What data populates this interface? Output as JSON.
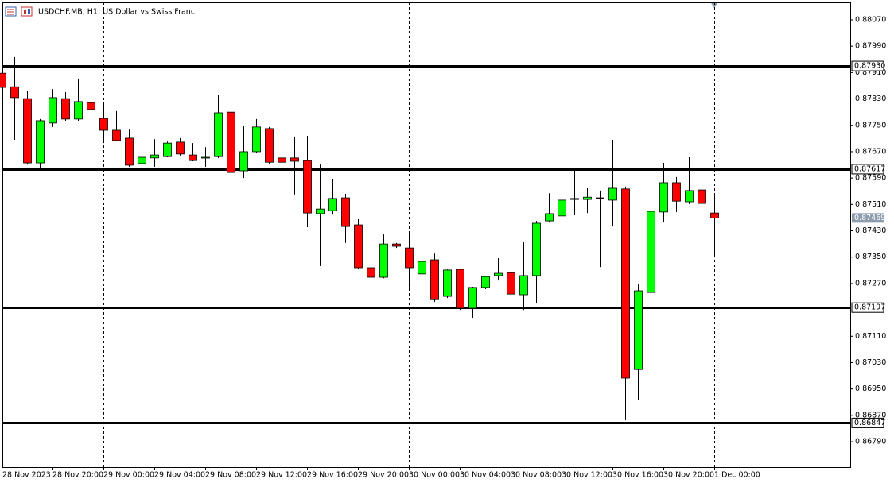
{
  "chart_data": {
    "type": "candlestick",
    "title": "USDCHF.MB, H1:  US Dollar vs Swiss Franc",
    "categories": [
      "28 Nov 2023",
      null,
      null,
      null,
      "28 Nov 20:00",
      null,
      null,
      null,
      "29 Nov 00:00",
      null,
      null,
      null,
      "29 Nov 04:00",
      null,
      null,
      null,
      "29 Nov 08:00",
      null,
      null,
      null,
      "29 Nov 12:00",
      null,
      null,
      null,
      "29 Nov 16:00",
      null,
      null,
      null,
      "29 Nov 20:00",
      null,
      null,
      null,
      "30 Nov 00:00",
      null,
      null,
      null,
      "30 Nov 04:00",
      null,
      null,
      null,
      "30 Nov 08:00",
      null,
      null,
      null,
      "30 Nov 12:00",
      null,
      null,
      null,
      "30 Nov 16:00",
      null,
      null,
      null,
      "30 Nov 20:00",
      null,
      null,
      null,
      "1 Dec 00:00"
    ],
    "open": [
      0.87908,
      0.87867,
      0.87831,
      0.87636,
      0.87757,
      0.87831,
      0.87769,
      0.87819,
      0.87771,
      0.87735,
      0.87711,
      0.87634,
      0.87651,
      0.87655,
      0.87699,
      0.8766,
      0.87651,
      0.87655,
      0.8779,
      0.87612,
      0.8767,
      0.8774,
      0.87651,
      0.87651,
      0.87643,
      0.87482,
      0.87491,
      0.8753,
      0.87448,
      0.87318,
      0.87289,
      0.8739,
      0.87378,
      0.87299,
      0.87342,
      0.87231,
      0.87313,
      0.87195,
      0.87258,
      0.87294,
      0.87303,
      0.87236,
      0.87294,
      0.8746,
      0.87475,
      0.87528,
      0.87525,
      0.8753,
      0.87523,
      0.87557,
      0.87009,
      0.87243,
      0.87487,
      0.87576,
      0.87518,
      0.87554,
      0.87484
    ],
    "high": [
      0.87913,
      0.87957,
      0.87853,
      0.87769,
      0.8786,
      0.87851,
      0.87892,
      0.87843,
      0.87817,
      0.87793,
      0.87737,
      0.87665,
      0.87708,
      0.87701,
      0.87711,
      0.87696,
      0.87684,
      0.87841,
      0.87805,
      0.87749,
      0.87769,
      0.87745,
      0.87675,
      0.87716,
      0.87718,
      0.87631,
      0.87588,
      0.87542,
      0.87465,
      0.87352,
      0.87419,
      0.87393,
      0.87426,
      0.87366,
      0.87361,
      0.87313,
      0.87315,
      0.8726,
      0.87294,
      0.87347,
      0.87308,
      0.87397,
      0.8746,
      0.87544,
      0.87588,
      0.87612,
      0.87559,
      0.87552,
      0.87706,
      0.87564,
      0.87267,
      0.87496,
      0.87636,
      0.87593,
      0.87653,
      0.87559,
      0.8754
    ],
    "low": [
      0.87865,
      0.87706,
      0.87631,
      0.87617,
      0.87745,
      0.87764,
      0.87764,
      0.87793,
      0.87696,
      0.87701,
      0.87624,
      0.87569,
      0.87624,
      0.87653,
      0.87658,
      0.87641,
      0.87624,
      0.87651,
      0.87595,
      0.8759,
      0.87665,
      0.87634,
      0.87595,
      0.8754,
      0.87441,
      0.87323,
      0.87479,
      0.87393,
      0.87313,
      0.87205,
      0.87286,
      0.87378,
      0.87258,
      0.87296,
      0.87214,
      0.87226,
      0.8719,
      0.87166,
      0.87253,
      0.87279,
      0.87212,
      0.8719,
      0.87212,
      0.87455,
      0.87465,
      0.87477,
      0.87484,
      0.8732,
      0.87443,
      0.86855,
      0.86918,
      0.87236,
      0.87455,
      0.87487,
      0.87511,
      0.87511,
      0.87349
    ],
    "close": [
      0.87865,
      0.87834,
      0.87636,
      0.87764,
      0.87834,
      0.87769,
      0.87822,
      0.87798,
      0.87735,
      0.87704,
      0.87629,
      0.87653,
      0.8766,
      0.87696,
      0.87663,
      0.87643,
      0.87653,
      0.87788,
      0.87607,
      0.8767,
      0.87745,
      0.87638,
      0.87638,
      0.87641,
      0.87484,
      0.87496,
      0.87528,
      0.87443,
      0.87318,
      0.87289,
      0.8739,
      0.87383,
      0.87318,
      0.87337,
      0.87221,
      0.87311,
      0.87195,
      0.87258,
      0.87291,
      0.87301,
      0.87238,
      0.87294,
      0.87453,
      0.87482,
      0.87523,
      0.87525,
      0.87532,
      0.87528,
      0.87559,
      0.86983,
      0.87248,
      0.87489,
      0.87576,
      0.8752,
      0.87552,
      0.87513,
      0.87469
    ],
    "up_color": "#00ff00",
    "down_color": "#ff0000",
    "ylim": [
      0.86713,
      0.88123
    ],
    "yticks": [
      {
        "value": 0.8807,
        "label": "0.88070"
      },
      {
        "value": 0.8799,
        "label": "0.87990"
      },
      {
        "value": 0.8791,
        "label": "0.87910"
      },
      {
        "value": 0.8783,
        "label": "0.87830"
      },
      {
        "value": 0.8775,
        "label": "0.87750"
      },
      {
        "value": 0.8767,
        "label": "0.87670"
      },
      {
        "value": 0.8759,
        "label": "0.87590"
      },
      {
        "value": 0.8751,
        "label": "0.87510"
      },
      {
        "value": 0.8743,
        "label": "0.87430"
      },
      {
        "value": 0.8735,
        "label": "0.87350"
      },
      {
        "value": 0.8727,
        "label": "0.87270"
      },
      {
        "value": 0.8711,
        "label": "0.87110"
      },
      {
        "value": 0.8703,
        "label": "0.87030"
      },
      {
        "value": 0.8695,
        "label": "0.86950"
      },
      {
        "value": 0.8687,
        "label": "0.86870"
      },
      {
        "value": 0.8679,
        "label": "0.86790"
      }
    ],
    "levels": [
      {
        "value": 0.8793,
        "label": "0.87930"
      },
      {
        "value": 0.87617,
        "label": "0.87617"
      },
      {
        "value": 0.87197,
        "label": "0.87197"
      },
      {
        "value": 0.86847,
        "label": "0.86847"
      }
    ],
    "last_price": {
      "value": 0.87469,
      "label": "0.87469"
    },
    "last_price_color": "#8c9cad"
  }
}
